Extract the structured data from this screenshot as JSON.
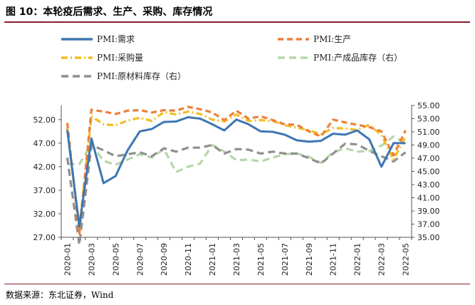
{
  "figure": {
    "title": "图 10：本轮疫后需求、生产、采购、库存情况",
    "source": "数据来源：东北证券，Wind"
  },
  "chart_data": {
    "type": "line",
    "title": "图 10：本轮疫后需求、生产、采购、库存情况",
    "x": [
      "2020-01",
      "2020-02",
      "2020-03",
      "2020-04",
      "2020-05",
      "2020-06",
      "2020-07",
      "2020-08",
      "2020-09",
      "2020-10",
      "2020-11",
      "2020-12",
      "2021-01",
      "2021-02",
      "2021-03",
      "2021-04",
      "2021-05",
      "2021-06",
      "2021-07",
      "2021-08",
      "2021-09",
      "2021-10",
      "2021-11",
      "2021-12",
      "2022-01",
      "2022-02",
      "2022-03",
      "2022-04",
      "2022-05"
    ],
    "x_tick_labels": [
      "2020-01",
      "2020-03",
      "2020-05",
      "2020-07",
      "2020-09",
      "2020-11",
      "2021-01",
      "2021-03",
      "2021-05",
      "2021-07",
      "2021-09",
      "2021-11",
      "2022-01",
      "2022-03",
      "2022-05"
    ],
    "left_axis": {
      "ylim": [
        27.0,
        55.0
      ],
      "ticks": [
        "27.00",
        "32.00",
        "37.00",
        "42.00",
        "47.00",
        "52.00"
      ]
    },
    "right_axis": {
      "ylim": [
        35.0,
        55.0
      ],
      "ticks": [
        "35.00",
        "37.00",
        "39.00",
        "41.00",
        "43.00",
        "45.00",
        "47.00",
        "49.00",
        "51.00",
        "53.00",
        "55.00"
      ]
    },
    "series": [
      {
        "name": "PMI:需求",
        "axis": "left",
        "color": "#3e76b2",
        "dash": "solid",
        "values": [
          49.8,
          29.3,
          48.0,
          38.5,
          40.0,
          45.5,
          49.5,
          50.0,
          51.5,
          51.6,
          52.5,
          52.2,
          51.0,
          49.7,
          52.0,
          51.0,
          49.5,
          49.4,
          48.8,
          47.6,
          47.3,
          47.5,
          49.0,
          48.8,
          49.7,
          47.8,
          42.0,
          47.0,
          47.0
        ]
      },
      {
        "name": "PMI:生产",
        "axis": "left",
        "color": "#ec7f3a",
        "dash": "8,5",
        "values": [
          51.3,
          27.8,
          54.1,
          53.7,
          53.2,
          53.9,
          54.0,
          53.5,
          54.0,
          53.9,
          54.7,
          54.2,
          53.5,
          51.9,
          53.9,
          52.2,
          52.7,
          51.9,
          51.0,
          50.9,
          49.5,
          48.4,
          52.0,
          51.4,
          50.9,
          50.4,
          49.5,
          44.4,
          49.7
        ]
      },
      {
        "name": "PMI:采购量",
        "axis": "left",
        "color": "#f2bd26",
        "dash": "9,4,2,4",
        "values": [
          50.1,
          29.0,
          52.7,
          51.0,
          50.8,
          51.8,
          52.4,
          51.7,
          53.6,
          53.1,
          53.7,
          53.2,
          52.0,
          51.6,
          53.1,
          51.7,
          51.9,
          51.7,
          50.8,
          50.3,
          49.7,
          48.9,
          50.2,
          50.1,
          49.8,
          50.9,
          48.7,
          43.5,
          48.4
        ]
      },
      {
        "name": "PMI:产成品库存（右）",
        "axis": "right",
        "color": "#b5d7a8",
        "dash": "10,6",
        "values": [
          46.1,
          46.1,
          49.1,
          46.6,
          46.0,
          46.8,
          47.6,
          47.1,
          48.4,
          44.9,
          45.7,
          46.2,
          49.0,
          48.0,
          46.7,
          46.8,
          46.5,
          47.1,
          47.6,
          47.7,
          47.2,
          46.3,
          47.9,
          48.5,
          48.0,
          48.1,
          48.9,
          50.3,
          49.3
        ]
      },
      {
        "name": "PMI:原材料库存（右）",
        "axis": "right",
        "color": "#8f8f8f",
        "dash": "10,6",
        "values": [
          47.1,
          33.9,
          49.0,
          48.2,
          47.3,
          47.6,
          47.9,
          47.3,
          48.5,
          48.0,
          48.6,
          48.6,
          49.0,
          47.7,
          48.4,
          48.3,
          47.7,
          48.0,
          47.7,
          47.7,
          47.0,
          46.2,
          47.7,
          49.2,
          49.1,
          48.1,
          47.3,
          46.5,
          47.9
        ]
      }
    ],
    "legend": {
      "position": "top",
      "columns": 2
    }
  }
}
